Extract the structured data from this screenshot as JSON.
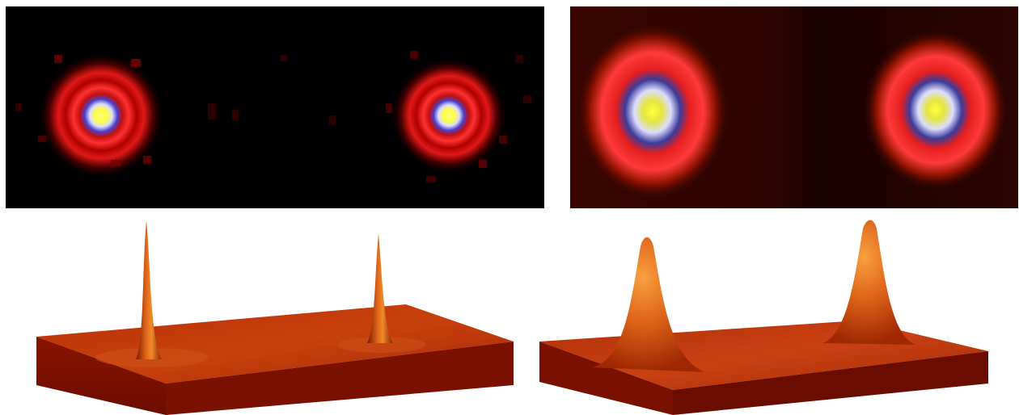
{
  "figure": {
    "panels": [
      {
        "id": "tl",
        "kind": "heatmap-2d",
        "colormap": [
          "#000000",
          "#d10000",
          "#ff2b2b",
          "#4a3ec8",
          "#e6e6ff",
          "#ffff66"
        ],
        "peaks": 2
      },
      {
        "id": "tr",
        "kind": "heatmap-2d",
        "colormap": [
          "#1a0200",
          "#7a0d00",
          "#e81e1e",
          "#2a2a8a",
          "#dfe0ff",
          "#f4f44a"
        ],
        "peaks": 2
      },
      {
        "id": "bl",
        "kind": "surface-3d",
        "surface_color": "#c33a08",
        "peaks": 2
      },
      {
        "id": "br",
        "kind": "surface-3d",
        "surface_color": "#c33a08",
        "peaks": 2
      }
    ]
  }
}
